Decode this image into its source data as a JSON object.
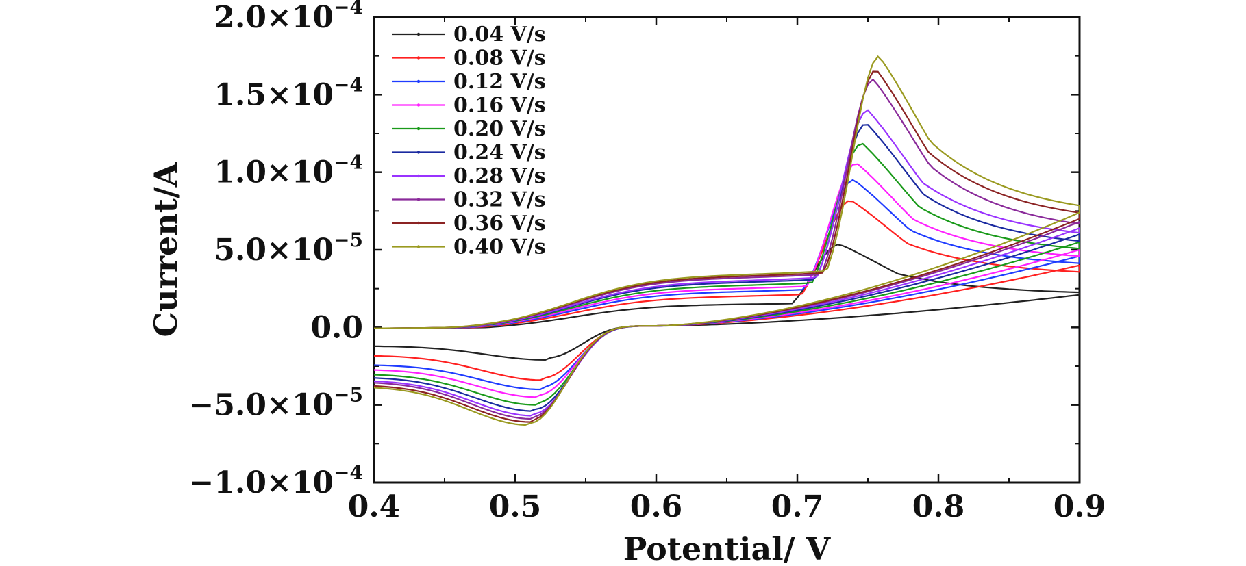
{
  "chart_data": {
    "type": "line",
    "title": "",
    "xlabel": "Potential/ V",
    "ylabel": "Current/A",
    "xlim": [
      0.4,
      0.9
    ],
    "ylim": [
      -0.0001,
      0.0002
    ],
    "x_ticks": [
      {
        "value": 0.4,
        "label": "0.4"
      },
      {
        "value": 0.5,
        "label": "0.5"
      },
      {
        "value": 0.6,
        "label": "0.6"
      },
      {
        "value": 0.7,
        "label": "0.7"
      },
      {
        "value": 0.8,
        "label": "0.8"
      },
      {
        "value": 0.9,
        "label": "0.9"
      }
    ],
    "y_ticks": [
      {
        "value": 0.0002,
        "mant": "2.0×10",
        "exp": "−4"
      },
      {
        "value": 0.00015,
        "mant": "1.5×10",
        "exp": "−4"
      },
      {
        "value": 0.0001,
        "mant": "1.0×10",
        "exp": "−4"
      },
      {
        "value": 5e-05,
        "mant": "5.0×10",
        "exp": "−5"
      },
      {
        "value": 0,
        "mant": "0.0",
        "exp": ""
      },
      {
        "value": -5e-05,
        "mant": "−5.0×10",
        "exp": "−5"
      },
      {
        "value": -0.0001,
        "mant": "−1.0×10",
        "exp": "−4"
      }
    ],
    "grid": false,
    "legend_position": "top-left",
    "series": [
      {
        "name": "0.04 V/s",
        "color": "#222222",
        "ipa": 4.8e-05,
        "ipc": 2.1e-05,
        "epa": 0.73,
        "epc": 0.522,
        "aplat": 1.5e-05,
        "tail": 2.1e-05,
        "fwd_end": 2.1e-05,
        "base_start": -1.2e-05
      },
      {
        "name": "0.08 V/s",
        "color": "#ff2020",
        "ipa": 7.4e-05,
        "ipc": 3.4e-05,
        "epa": 0.738,
        "epc": 0.519,
        "aplat": 2e-05,
        "tail": 4e-05,
        "fwd_end": 3.3e-05,
        "base_start": -1.8e-05
      },
      {
        "name": "0.12 V/s",
        "color": "#1f3cff",
        "ipa": 8.6e-05,
        "ipc": 4e-05,
        "epa": 0.74,
        "epc": 0.518,
        "aplat": 2.3e-05,
        "tail": 4.6e-05,
        "fwd_end": 3.8e-05,
        "base_start": -2.4e-05
      },
      {
        "name": "0.16 V/s",
        "color": "#ff20ff",
        "ipa": 9.6e-05,
        "ipc": 4.5e-05,
        "epa": 0.742,
        "epc": 0.516,
        "aplat": 2.5e-05,
        "tail": 5e-05,
        "fwd_end": 4.2e-05,
        "base_start": -2.7e-05
      },
      {
        "name": "0.20 V/s",
        "color": "#1a9a1a",
        "ipa": 0.000108,
        "ipc": 5e-05,
        "epa": 0.746,
        "epc": 0.515,
        "aplat": 2.7e-05,
        "tail": 5.5e-05,
        "fwd_end": 4.6e-05,
        "base_start": -3e-05
      },
      {
        "name": "0.24 V/s",
        "color": "#1a2aa0",
        "ipa": 0.00012,
        "ipc": 5.4e-05,
        "epa": 0.749,
        "epc": 0.514,
        "aplat": 2.9e-05,
        "tail": 6e-05,
        "fwd_end": 5e-05,
        "base_start": -3.2e-05
      },
      {
        "name": "0.28 V/s",
        "color": "#9933ff",
        "ipa": 0.000128,
        "ipc": 5.7e-05,
        "epa": 0.75,
        "epc": 0.513,
        "aplat": 3e-05,
        "tail": 6.4e-05,
        "fwd_end": 5.5e-05,
        "base_start": -3.4e-05
      },
      {
        "name": "0.32 V/s",
        "color": "#8a2a9a",
        "ipa": 0.000147,
        "ipc": 5.9e-05,
        "epa": 0.754,
        "epc": 0.512,
        "aplat": 3.2e-05,
        "tail": 6.8e-05,
        "fwd_end": 5.9e-05,
        "base_start": -3.5e-05
      },
      {
        "name": "0.36 V/s",
        "color": "#8b2323",
        "ipa": 0.000153,
        "ipc": 6.1e-05,
        "epa": 0.756,
        "epc": 0.511,
        "aplat": 3.3e-05,
        "tail": 7e-05,
        "fwd_end": 6.6e-05,
        "base_start": -3.7e-05
      },
      {
        "name": "0.40 V/s",
        "color": "#9a9a20",
        "ipa": 0.000161,
        "ipc": 6.3e-05,
        "epa": 0.758,
        "epc": 0.51,
        "aplat": 3.4e-05,
        "tail": 7.4e-05,
        "fwd_end": 7e-05,
        "base_start": -3.8e-05
      }
    ]
  }
}
